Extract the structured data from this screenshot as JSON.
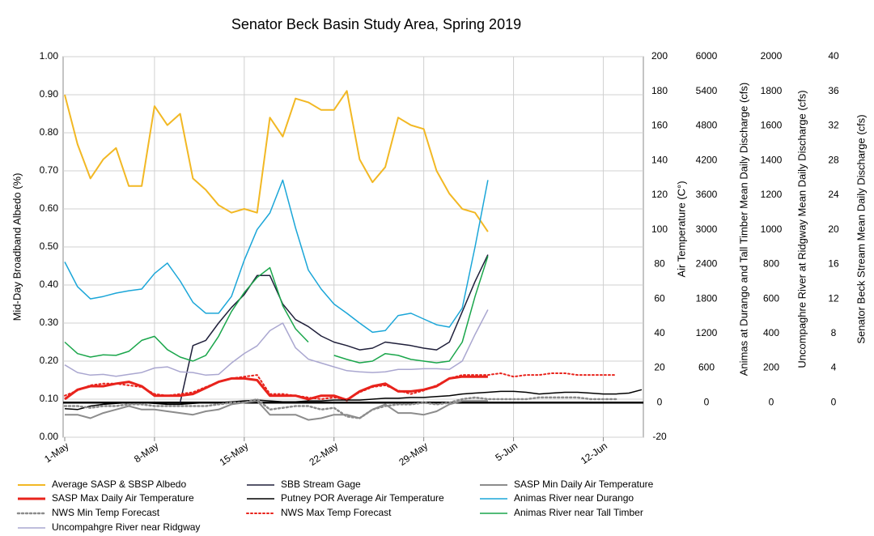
{
  "chart_data": {
    "type": "line",
    "title": "Senator Beck Basin Study Area, Spring 2019",
    "y_label": "Mid-Day Broadband Albedo (%)",
    "y2_label": "Air Temperature (C°)",
    "y3_label": "Animas at Durango and Tall Timber Mean Daily Discharge (cfs)",
    "y4_label": "Uncompaghre River at Ridgway Mean Daily Discharge (cfs)",
    "y5_label": "Senator Beck Stream Mean Daily Discharge (cfs)",
    "categories": [
      "1-May",
      null,
      null,
      null,
      null,
      null,
      null,
      "8-May",
      null,
      null,
      null,
      null,
      null,
      null,
      "15-May",
      null,
      null,
      null,
      null,
      null,
      null,
      "22-May",
      null,
      null,
      null,
      null,
      null,
      null,
      "29-May",
      null,
      null,
      null,
      null,
      null,
      null,
      "5-Jun",
      null,
      null,
      null,
      null,
      null,
      null,
      "12-Jun",
      null,
      null,
      null
    ],
    "ylim": [
      0,
      1
    ],
    "yticks": [
      {
        "value": 0,
        "label": "0.00"
      },
      {
        "value": 0.1,
        "label": "0.10"
      },
      {
        "value": 0.2,
        "label": "0.20"
      },
      {
        "value": 0.3,
        "label": "0.30"
      },
      {
        "value": 0.4,
        "label": "0.40"
      },
      {
        "value": 0.5,
        "label": "0.50"
      },
      {
        "value": 0.6,
        "label": "0.60"
      },
      {
        "value": 0.7,
        "label": "0.70"
      },
      {
        "value": 0.8,
        "label": "0.80"
      },
      {
        "value": 0.9,
        "label": "0.90"
      },
      {
        "value": 1,
        "label": "1.00"
      }
    ],
    "y2lim": [
      -20,
      200
    ],
    "y2ticks": [
      -20,
      0,
      20,
      40,
      60,
      80,
      100,
      120,
      140,
      160,
      180,
      200
    ],
    "y3lim": [
      -600,
      6000
    ],
    "y3ticks": [
      0,
      600,
      1200,
      1800,
      2400,
      3000,
      3600,
      4200,
      4800,
      5400,
      6000
    ],
    "y4lim": [
      -200,
      2000
    ],
    "y4ticks": [
      0,
      200,
      400,
      600,
      800,
      1000,
      1200,
      1400,
      1600,
      1800,
      2000
    ],
    "y5lim": [
      -4,
      40
    ],
    "y5ticks": [
      0,
      4,
      8,
      12,
      16,
      20,
      24,
      28,
      32,
      36,
      40
    ],
    "grid": true,
    "series": [
      {
        "name": "Average SASP & SBSP Albedo",
        "color": "#f2b824",
        "width": 2,
        "axis": "y",
        "values": [
          0.9,
          0.77,
          0.68,
          0.73,
          0.76,
          0.66,
          0.66,
          0.87,
          0.82,
          0.85,
          0.68,
          0.65,
          0.61,
          0.59,
          0.6,
          0.59,
          0.84,
          0.79,
          0.89,
          0.88,
          0.86,
          0.86,
          0.91,
          0.73,
          0.67,
          0.71,
          0.84,
          0.82,
          0.81,
          0.7,
          0.64,
          0.6,
          0.59,
          0.54,
          null,
          null,
          null,
          null,
          null,
          null,
          null,
          null,
          null,
          null,
          null,
          null
        ]
      },
      {
        "name": "SBB Stream Gage",
        "color": "#1f1f3a",
        "width": 1.5,
        "axis": "y5",
        "values": [
          null,
          null,
          null,
          null,
          null,
          null,
          null,
          null,
          null,
          0,
          6.6,
          7.2,
          9.2,
          11,
          12.5,
          14.7,
          14.7,
          11.4,
          9.6,
          8.8,
          7.7,
          7,
          6.6,
          6.1,
          6.3,
          7,
          6.8,
          6.6,
          6.3,
          6.1,
          7,
          10.5,
          14,
          17.1,
          null,
          null,
          null,
          null,
          null,
          null,
          null,
          null,
          null,
          null,
          null,
          null
        ]
      },
      {
        "name": "SASP Min Daily Air Temperature",
        "color": "#8c8c8c",
        "width": 2,
        "axis": "y2",
        "values": [
          -7,
          -7,
          -9,
          -6,
          -4,
          -2,
          -4,
          -4,
          -5,
          -6,
          -7,
          -5,
          -4,
          -1,
          0,
          1,
          -7,
          -7,
          -7,
          -10,
          -9,
          -7,
          -7,
          -9,
          -4,
          -1,
          -6,
          -6,
          -7,
          -5,
          -1,
          1,
          1,
          1,
          null,
          null,
          null,
          null,
          null,
          null,
          null,
          null,
          null,
          null,
          null,
          null
        ]
      },
      {
        "name": "SASP Max Daily Air Temperature",
        "color": "#e8231c",
        "width": 3,
        "axis": "y2",
        "values": [
          2,
          7.5,
          9.5,
          9.5,
          11,
          12,
          9.5,
          4,
          4,
          4,
          5,
          8.5,
          12,
          14,
          14,
          13,
          4,
          4,
          4,
          2,
          4,
          4,
          1.5,
          6.5,
          9.5,
          11,
          6.5,
          6.5,
          7.5,
          9.5,
          14,
          15,
          15,
          15,
          null,
          null,
          null,
          null,
          null,
          null,
          null,
          null,
          null,
          null,
          null,
          null
        ]
      },
      {
        "name": "Putney POR Average Air Temperature",
        "color": "#000000",
        "width": 1.5,
        "axis": "y2",
        "values": [
          -3.5,
          -4,
          -2,
          -1,
          -0.5,
          0,
          0,
          -0.5,
          -1,
          -1,
          -0.5,
          0,
          0,
          0.5,
          1,
          1.5,
          1,
          0.5,
          0.5,
          1,
          1,
          1.5,
          1.5,
          1.5,
          2,
          2.5,
          2.5,
          3,
          3,
          3.5,
          4,
          5,
          5.5,
          6,
          6.5,
          6.5,
          6,
          5,
          5.5,
          6,
          6,
          5.5,
          5,
          5,
          5.5,
          7.5
        ]
      },
      {
        "name": "Animas River near Durango",
        "color": "#1ba6d8",
        "width": 1.5,
        "axis": "y3",
        "values": [
          2440,
          2010,
          1800,
          1840,
          1900,
          1940,
          1970,
          2240,
          2420,
          2110,
          1740,
          1550,
          1550,
          1840,
          2470,
          3000,
          3290,
          3860,
          3030,
          2300,
          1970,
          1710,
          1550,
          1380,
          1220,
          1250,
          1510,
          1550,
          1450,
          1350,
          1310,
          1640,
          2700,
          3860,
          null,
          null,
          null,
          null,
          null,
          null,
          null,
          null,
          null,
          null,
          null,
          null
        ]
      },
      {
        "name": "NWS Min Temp Forecast",
        "color": "#8c8c8c",
        "width": 2.5,
        "axis": "y2",
        "dash": true,
        "values": [
          -2,
          -2,
          -3,
          -2,
          -2,
          -1,
          -1,
          -2,
          -2,
          -2,
          -2,
          -2,
          -1,
          0,
          0,
          2,
          -4,
          -3,
          -2,
          -2,
          -4,
          -3,
          -8,
          -9,
          -4,
          -2,
          -1,
          -1,
          0,
          -1,
          0,
          2,
          3,
          2,
          2,
          2,
          2,
          3,
          3,
          3,
          3,
          2,
          2,
          2,
          null,
          null
        ]
      },
      {
        "name": "NWS Max Temp Forecast",
        "color": "#e8231c",
        "width": 2,
        "axis": "y2",
        "dash": true,
        "values": [
          4,
          7,
          10,
          11,
          11,
          10,
          9,
          5,
          4,
          5,
          6,
          9,
          12,
          14,
          15,
          16,
          5,
          5,
          4,
          3,
          2,
          3,
          2,
          6,
          9,
          10,
          7,
          5,
          7,
          10,
          14,
          16,
          16,
          16,
          17,
          15,
          16,
          16,
          17,
          17,
          16,
          16,
          16,
          16,
          null,
          null
        ]
      },
      {
        "name": "Animas River near Tall Timber",
        "color": "#1aa64b",
        "width": 1.5,
        "axis": "y3",
        "values": [
          1050,
          850,
          790,
          830,
          820,
          890,
          1080,
          1150,
          920,
          790,
          720,
          820,
          1150,
          1580,
          1910,
          2170,
          2340,
          1680,
          1280,
          1050,
          null,
          820,
          750,
          690,
          720,
          850,
          820,
          750,
          720,
          690,
          720,
          1050,
          1840,
          2540,
          null,
          null,
          null,
          null,
          null,
          null,
          null,
          null,
          null,
          null,
          null,
          null
        ]
      },
      {
        "name": "Uncompahgre River near Ridgway",
        "color": "#aaa7d0",
        "width": 1.5,
        "axis": "y4",
        "values": [
          218,
          174,
          159,
          163,
          152,
          163,
          174,
          200,
          207,
          178,
          174,
          159,
          163,
          229,
          284,
          328,
          416,
          460,
          317,
          251,
          229,
          207,
          185,
          178,
          174,
          178,
          192,
          192,
          196,
          196,
          192,
          240,
          394,
          537,
          null,
          null,
          null,
          null,
          null,
          null,
          null,
          null,
          null,
          null,
          null,
          null
        ]
      }
    ]
  }
}
